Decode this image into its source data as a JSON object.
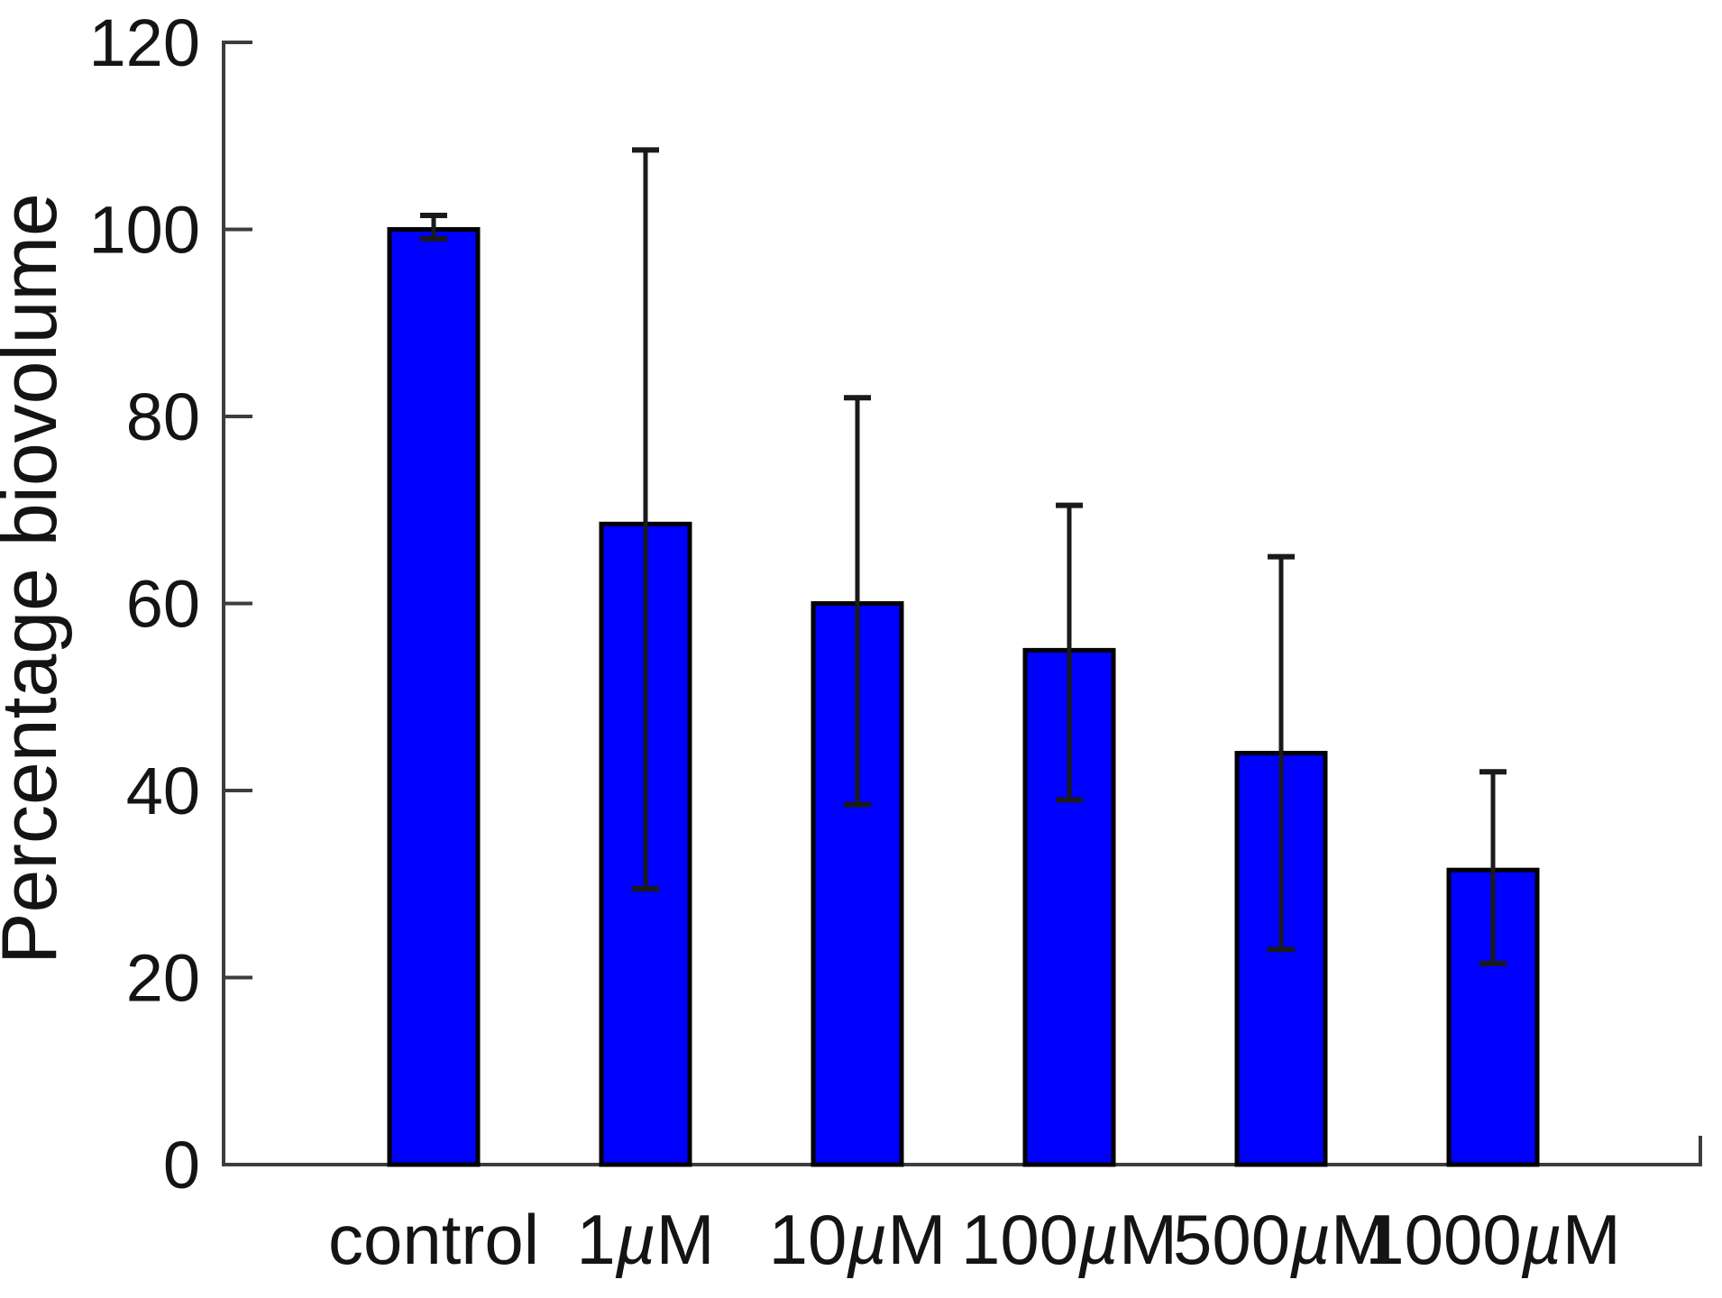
{
  "figure": {
    "background": "#ffffff"
  },
  "chart_data": {
    "type": "bar",
    "title": "",
    "xlabel": "",
    "ylabel": "Percentage biovolume",
    "categories": [
      "control",
      "1µM",
      "10µM",
      "100µM",
      "500µM",
      "1000µM"
    ],
    "values": [
      100,
      68.5,
      60,
      55,
      44,
      31.5
    ],
    "error_low": [
      99,
      29.5,
      38.5,
      39,
      23,
      21.5
    ],
    "error_high": [
      101.5,
      108.5,
      82,
      70.5,
      65,
      42
    ],
    "y_ticks": [
      0,
      20,
      40,
      60,
      80,
      100,
      120
    ],
    "ylim": [
      0,
      120
    ],
    "grid": false,
    "legend": "none",
    "bar_color": "#0000ff",
    "bar_edge_color": "#000000",
    "error_color": "#1a1a1a",
    "axis_color": "#3d3d3d",
    "text_color": "#141414"
  }
}
